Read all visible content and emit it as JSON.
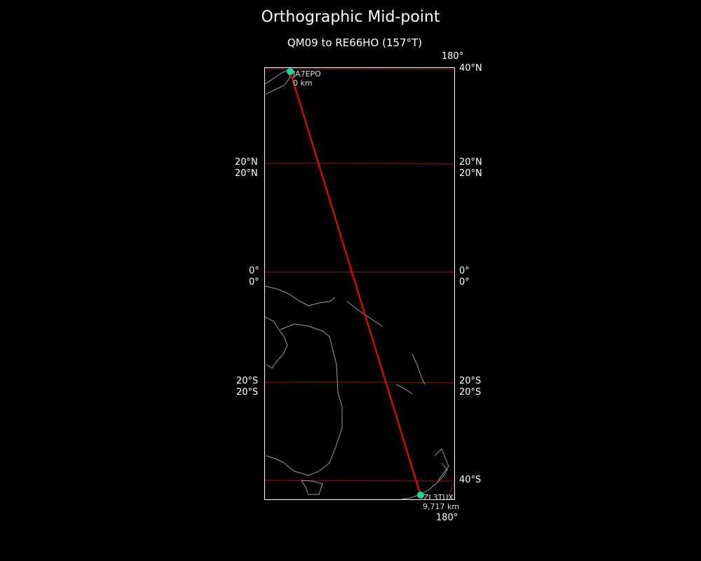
{
  "title": "Orthographic Mid-point",
  "subtitle": "QM09 to RE66HO (157°T)",
  "top_label": "180°",
  "bottom_label": "180°",
  "left_labels": [
    "20°N",
    "20°N",
    "0°",
    "0°",
    "20°S",
    "20°S"
  ],
  "right_labels": [
    "40°N",
    "20°N",
    "20°N",
    "0°",
    "0°",
    "20°S",
    "20°S",
    "40°S"
  ],
  "start": {
    "call": "JA7EPO",
    "dist": "0 km"
  },
  "end": {
    "call": "ZL3TUX",
    "dist": "9,717 km"
  },
  "colors": {
    "path": "#ff0000",
    "marker": "#1fd8a0",
    "graticule": "#8b1a1a",
    "coast": "#9a9a9a",
    "frame": "#ffffff"
  }
}
